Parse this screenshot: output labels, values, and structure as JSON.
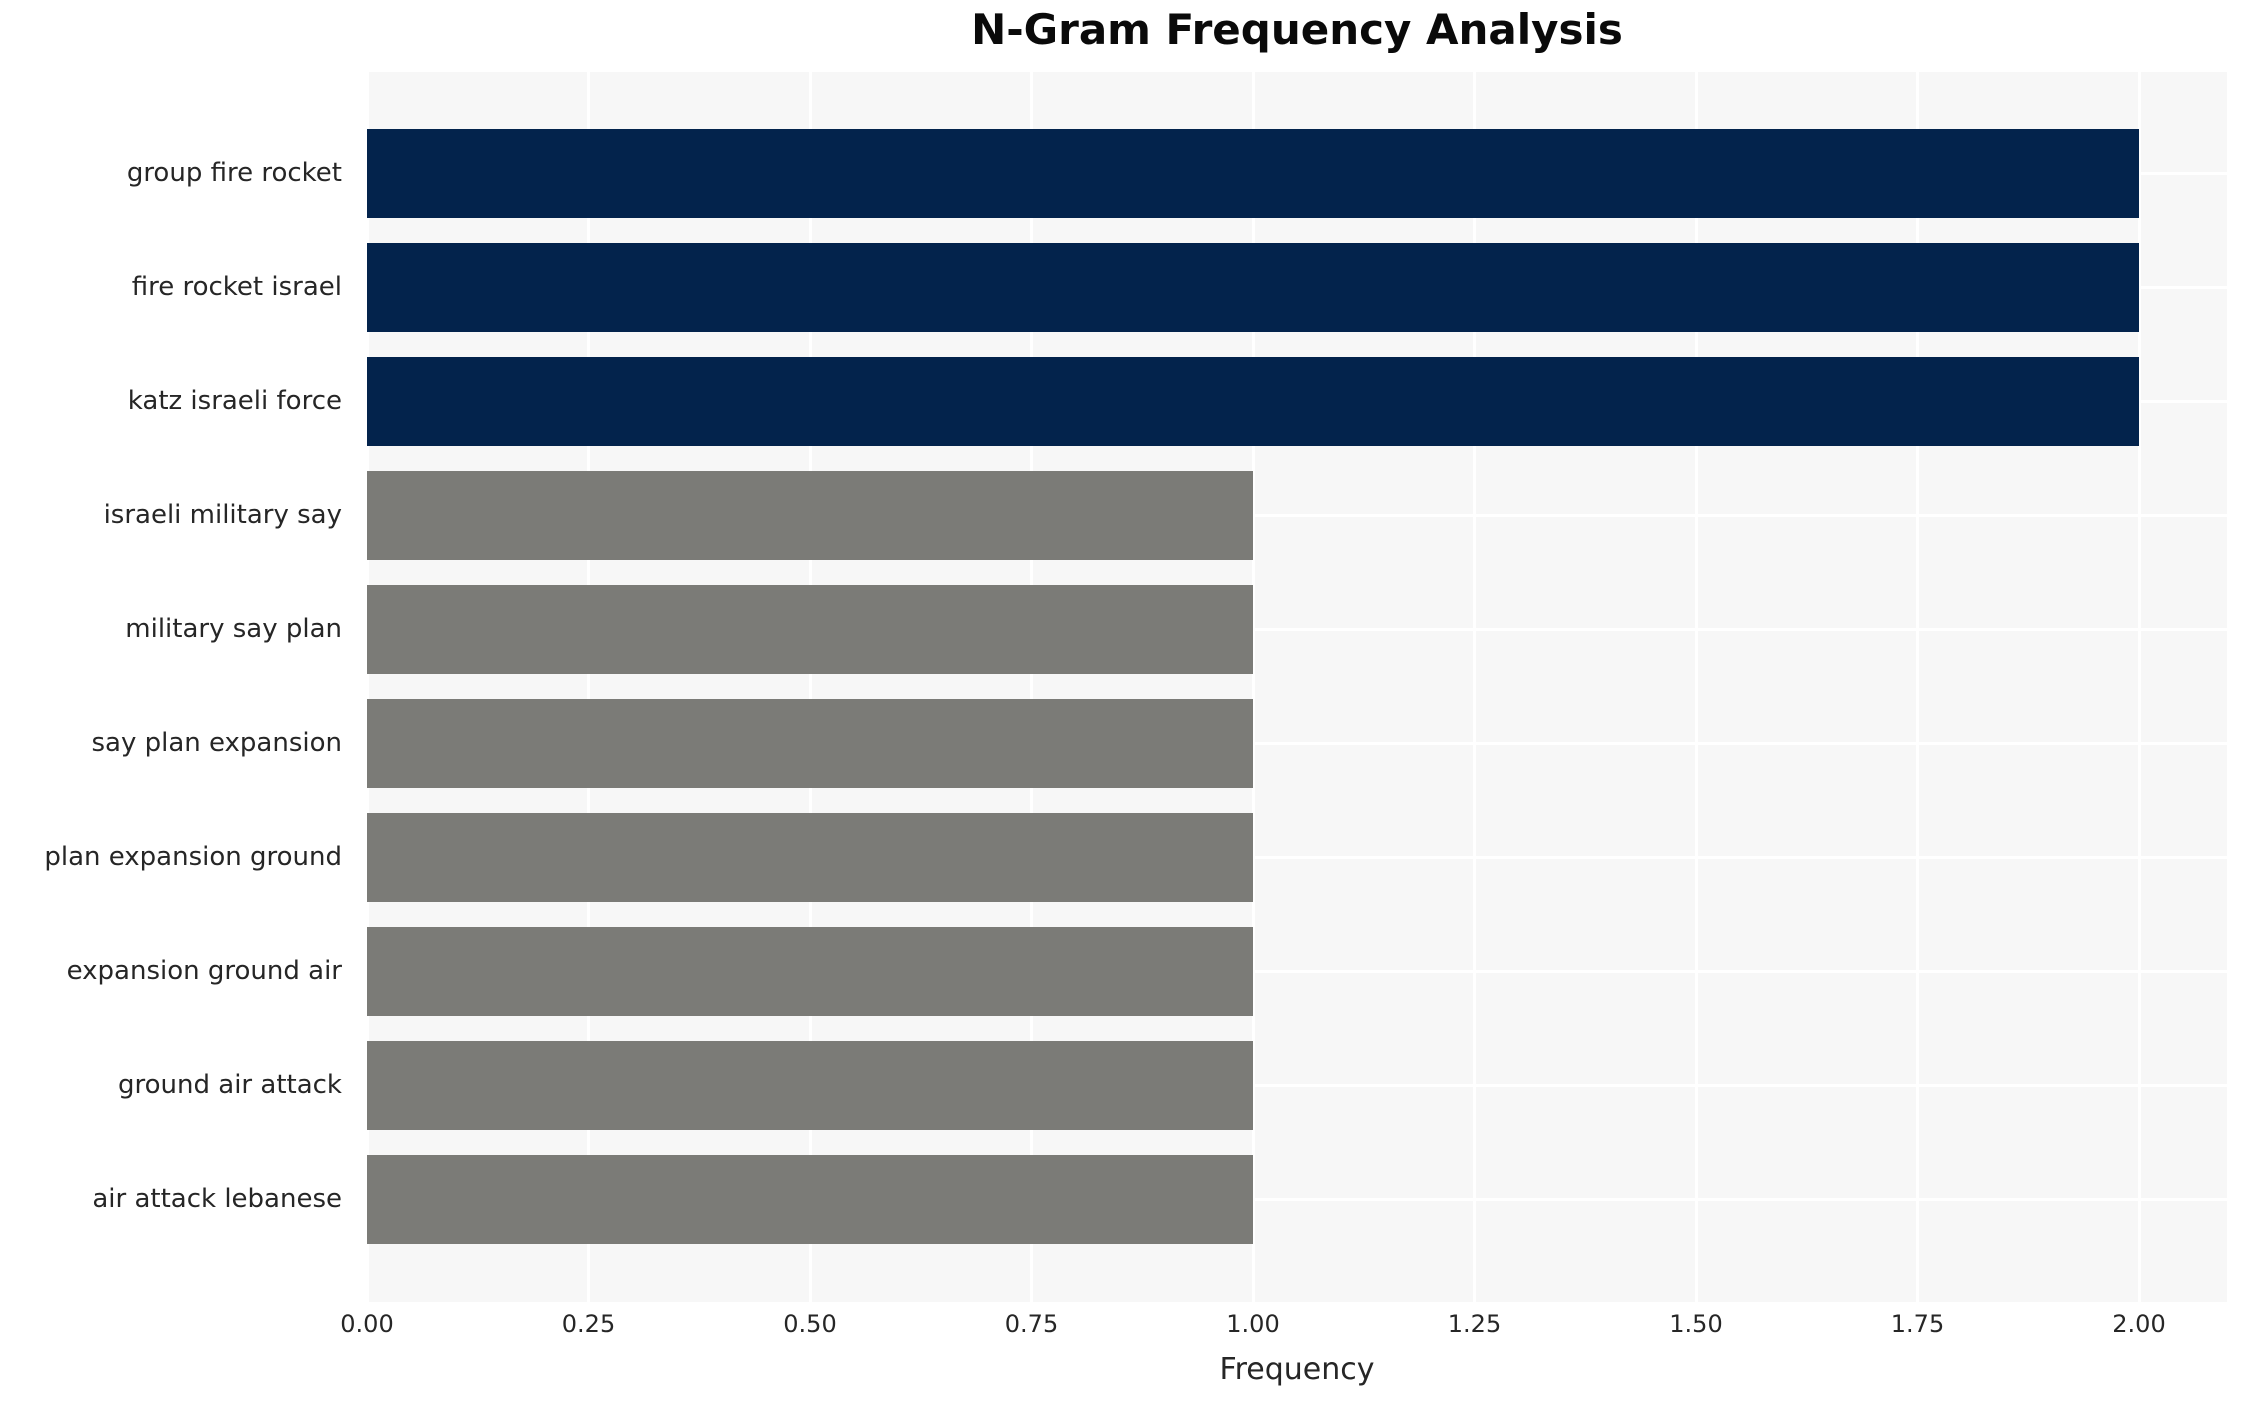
{
  "chart_data": {
    "type": "bar",
    "orientation": "horizontal",
    "title": "N-Gram Frequency Analysis",
    "xlabel": "Frequency",
    "ylabel": "",
    "categories": [
      "group fire rocket",
      "fire rocket israel",
      "katz israeli force",
      "israeli military say",
      "military say plan",
      "say plan expansion",
      "plan expansion ground",
      "expansion ground air",
      "ground air attack",
      "air attack lebanese"
    ],
    "values": [
      2,
      2,
      2,
      1,
      1,
      1,
      1,
      1,
      1,
      1
    ],
    "xlim": [
      0,
      2.1
    ],
    "xticks": [
      "0.00",
      "0.25",
      "0.50",
      "0.75",
      "1.00",
      "1.25",
      "1.50",
      "1.75",
      "2.00"
    ],
    "xtick_values": [
      0,
      0.25,
      0.5,
      0.75,
      1.0,
      1.25,
      1.5,
      1.75,
      2.0
    ],
    "grid": true,
    "legend": "none",
    "colors": {
      "bar_high": "#03234c",
      "bar_low": "#7b7b77",
      "plot_background": "#f7f7f7",
      "gridline": "#ffffff",
      "text": "#262626",
      "title_text": "#0a0a0a",
      "figure_background": "#ffffff"
    },
    "bar_color_rule": "value >= 2 uses bar_high, else bar_low"
  }
}
